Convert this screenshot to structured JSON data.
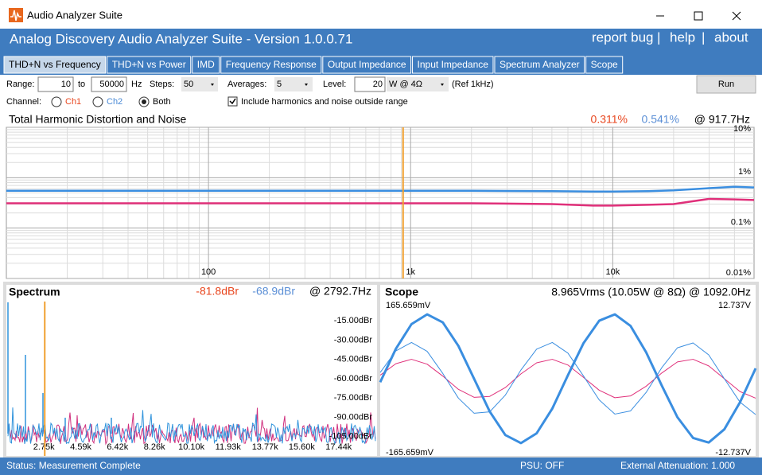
{
  "window": {
    "title": "Audio Analyzer Suite"
  },
  "header": {
    "title": "Analog Discovery Audio Analyzer Suite - Version",
    "version": "1.0.0.71",
    "links": [
      "report bug",
      "help",
      "about"
    ],
    "separator": "|"
  },
  "tabs": [
    "THD+N vs Frequency",
    "THD+N vs Power",
    "IMD",
    "Frequency Response",
    "Output Impedance",
    "Input Impedance",
    "Spectrum Analyzer",
    "Scope"
  ],
  "controls": {
    "range_label": "Range:",
    "range_from": "10",
    "to": "to",
    "range_to": "50000",
    "hz": "Hz",
    "steps_label": "Steps:",
    "steps": "50",
    "averages_label": "Averages:",
    "averages": "5",
    "level_label": "Level:",
    "level": "20",
    "level_unit": "W @ 4Ω",
    "ref": "(Ref 1kHz)",
    "run": "Run",
    "channel_label": "Channel:",
    "ch1": "Ch1",
    "ch2": "Ch2",
    "both": "Both",
    "include": "Include harmonics and noise outside range"
  },
  "thd": {
    "title": "Total Harmonic Distortion and Noise",
    "readout_ch1": "0.311%",
    "readout_ch2": "0.541%",
    "readout_freq": "@ 917.7Hz"
  },
  "spectrum": {
    "title": "Spectrum",
    "readout_ch1": "-81.8dBr",
    "readout_ch2": "-68.9dBr",
    "readout_freq": "@ 2792.7Hz"
  },
  "scope": {
    "title": "Scope",
    "readout": "8.965Vrms (10.05W @ 8Ω) @ 1092.0Hz"
  },
  "status": {
    "text": "Status: Measurement Complete",
    "psu": "PSU: OFF",
    "attenuation": "External Attenuation: 1.000"
  },
  "chart_data": [
    {
      "type": "line",
      "xscale": "log",
      "yscale": "log",
      "cursor": 917.7,
      "cursor_color": "#f0a030",
      "x": [
        10,
        20,
        50,
        100,
        200,
        500,
        1000,
        2000,
        5000,
        8000,
        10000,
        15000,
        20000,
        30000,
        40000,
        50000
      ],
      "series": [
        {
          "color": "#e0307a",
          "values": [
            0.31,
            0.31,
            0.31,
            0.31,
            0.31,
            0.31,
            0.31,
            0.31,
            0.3,
            0.28,
            0.28,
            0.29,
            0.3,
            0.38,
            0.37,
            0.36
          ]
        },
        {
          "color": "#3a8ee0",
          "values": [
            0.55,
            0.55,
            0.55,
            0.55,
            0.55,
            0.55,
            0.55,
            0.55,
            0.54,
            0.53,
            0.53,
            0.54,
            0.56,
            0.62,
            0.66,
            0.64
          ]
        }
      ],
      "xlim": [
        10,
        50000
      ],
      "ylim": [
        0.01,
        10
      ],
      "xticks": [
        100,
        {
          "value": 1000,
          "label": "1k"
        },
        {
          "value": 10000,
          "label": "10k"
        }
      ],
      "yticks": [
        {
          "value": 10,
          "label": "10%"
        },
        {
          "value": 1,
          "label": "1%"
        },
        {
          "value": 0.1,
          "label": "0.1%"
        },
        {
          "value": 0.01,
          "label": "0.01%"
        }
      ],
      "grid": true
    },
    {
      "type": "spectrum",
      "cursor": 2792.7,
      "cursor_color": "#f0a030",
      "xlim": [
        880,
        19350
      ],
      "ylim": [
        -120,
        0
      ],
      "xticks": [
        {
          "value": 2750,
          "label": "2.75k"
        },
        {
          "value": 4590,
          "label": "4.59k"
        },
        {
          "value": 6420,
          "label": "6.42k"
        },
        {
          "value": 8260,
          "label": "8.26k"
        },
        {
          "value": 10100,
          "label": "10.10k"
        },
        {
          "value": 11930,
          "label": "11.93k"
        },
        {
          "value": 13770,
          "label": "13.77k"
        },
        {
          "value": 15600,
          "label": "15.60k"
        },
        {
          "value": 17440,
          "label": "17.44k"
        }
      ],
      "yticks": [
        {
          "value": -15,
          "label": "-15.00dBr"
        },
        {
          "value": -30,
          "label": "-30.00dBr"
        },
        {
          "value": -45,
          "label": "-45.00dBr"
        },
        {
          "value": -60,
          "label": "-60.00dBr"
        },
        {
          "value": -75,
          "label": "-75.00dBr"
        },
        {
          "value": -90,
          "label": "-90.00dBr"
        },
        {
          "value": -105,
          "label": "-105.00dBr"
        }
      ]
    },
    {
      "type": "line",
      "ylim": [
        -165.659,
        165.659
      ],
      "y2lim": [
        -12.737,
        12.737
      ],
      "yticks": [
        {
          "value": 165.659,
          "label": "165.659mV"
        },
        {
          "value": -165.659,
          "label": "-165.659mV"
        }
      ],
      "y2ticks": [
        {
          "value": 12.737,
          "label": "12.737V"
        },
        {
          "value": -12.737,
          "label": "-12.737V"
        }
      ],
      "series": [
        {
          "color": "#e0307a",
          "values": [
            8,
            34,
            44,
            33,
            6,
            -24,
            -42,
            -40,
            -20,
            11,
            36,
            44,
            31,
            3,
            -26,
            -43,
            -39,
            -17,
            13,
            38,
            44,
            29,
            0,
            -29,
            -44
          ]
        },
        {
          "color": "#3a8ee0",
          "values": [
            14,
            63,
            82,
            62,
            12,
            -44,
            -78,
            -75,
            -37,
            20,
            67,
            82,
            58,
            6,
            -48,
            -80,
            -73,
            -31,
            25,
            70,
            81,
            54,
            0,
            -53,
            -81
          ]
        },
        {
          "color": "#3a8ee0",
          "axis": "y2",
          "values": [
            -0.6,
            5.2,
            9.5,
            11.2,
            9.8,
            5.7,
            0,
            -5.7,
            -9.8,
            -11.2,
            -9.5,
            -5.2,
            0.6,
            6.2,
            10.1,
            11.2,
            9.2,
            4.6,
            -1.2,
            -6.7,
            -10.3,
            -11.1,
            -8.8,
            -4.1,
            1.8
          ]
        }
      ]
    }
  ]
}
